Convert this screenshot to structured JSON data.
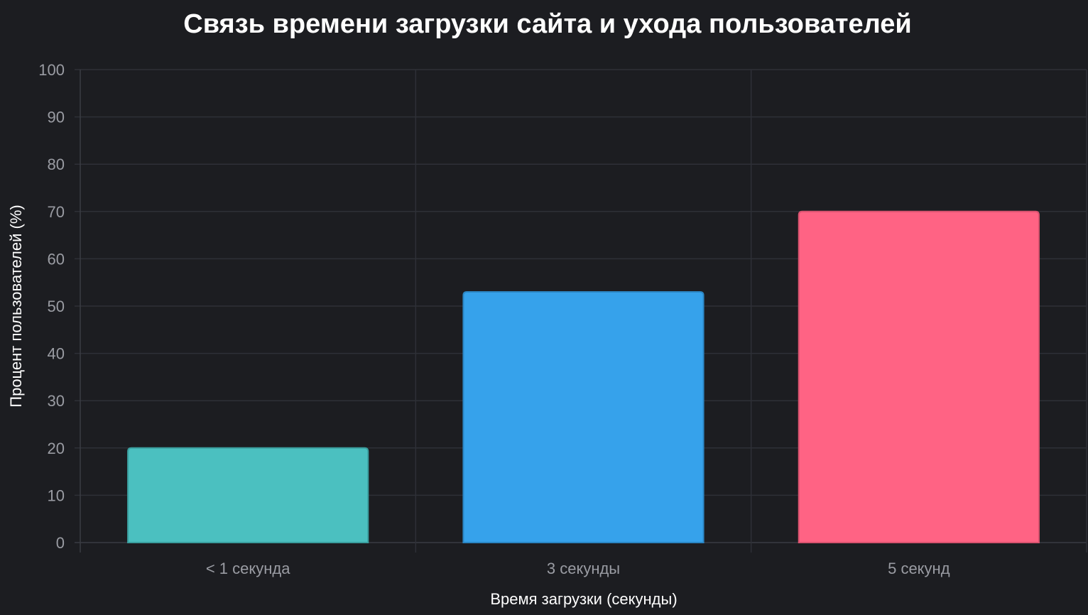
{
  "chart_data": {
    "type": "bar",
    "title": "Связь времени загрузки сайта и ухода пользователей",
    "xlabel": "Время загрузки (секунды)",
    "ylabel": "Процент пользователей (%)",
    "categories": [
      "< 1 секунда",
      "3 секунды",
      "5 секунд"
    ],
    "values": [
      20,
      53,
      70
    ],
    "colors": [
      "#4bc0c0",
      "#36a2eb",
      "#ff6384"
    ],
    "border_colors": [
      "#3a9e9e",
      "#2b86c4",
      "#d9536f"
    ],
    "ylim": [
      0,
      100
    ],
    "yticks": [
      0,
      10,
      20,
      30,
      40,
      50,
      60,
      70,
      80,
      90,
      100
    ],
    "grid": true,
    "legend": "none"
  }
}
